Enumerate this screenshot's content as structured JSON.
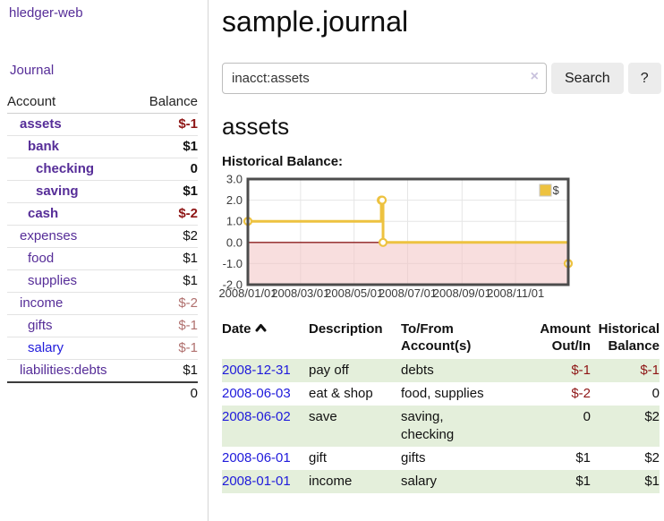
{
  "colors": {
    "purple": "#562d98",
    "blue": "#1f1adb",
    "darkred": "#8e1515",
    "mutedred": "#b0706e",
    "rowgreen": "#e4efdb"
  },
  "sidebar": {
    "brand": "hledger-web",
    "nav_journal": "Journal",
    "accounts": {
      "col_account": "Account",
      "col_balance": "Balance",
      "rows": [
        {
          "account": "assets",
          "balance": "$-1",
          "level": 1,
          "bold": true,
          "link": "purple",
          "bal": "neg"
        },
        {
          "account": "bank",
          "balance": "$1",
          "level": 2,
          "bold": true,
          "link": "purple",
          "bal": ""
        },
        {
          "account": "checking",
          "balance": "0",
          "level": 3,
          "bold": true,
          "link": "purple",
          "bal": ""
        },
        {
          "account": "saving",
          "balance": "$1",
          "level": 3,
          "bold": true,
          "link": "purple",
          "bal": ""
        },
        {
          "account": "cash",
          "balance": "$-2",
          "level": 2,
          "bold": true,
          "link": "purple",
          "bal": "neg"
        },
        {
          "account": "expenses",
          "balance": "$2",
          "level": 1,
          "bold": false,
          "link": "purple",
          "bal": ""
        },
        {
          "account": "food",
          "balance": "$1",
          "level": 2,
          "bold": false,
          "link": "purple",
          "bal": ""
        },
        {
          "account": "supplies",
          "balance": "$1",
          "level": 2,
          "bold": false,
          "link": "purple",
          "bal": ""
        },
        {
          "account": "income",
          "balance": "$-2",
          "level": 1,
          "bold": false,
          "link": "purple",
          "bal": "neg-muted"
        },
        {
          "account": "gifts",
          "balance": "$-1",
          "level": 2,
          "bold": false,
          "link": "purple",
          "bal": "neg-muted"
        },
        {
          "account": "salary",
          "balance": "$-1",
          "level": 2,
          "bold": false,
          "link": "blue",
          "bal": "neg-muted"
        },
        {
          "account": "liabilities:debts",
          "balance": "$1",
          "level": 1,
          "bold": false,
          "link": "purple",
          "bal": ""
        }
      ],
      "total": "0"
    }
  },
  "main": {
    "title": "sample.journal",
    "search": {
      "value": "inacct:assets",
      "clear_icon": "×",
      "button_label": "Search",
      "help_label": "?"
    },
    "account_heading": "assets"
  },
  "chart_data": {
    "type": "line",
    "step": true,
    "title": "Historical Balance:",
    "x_range": [
      "2008-01-01",
      "2008-12-31"
    ],
    "ylim": [
      -2,
      3
    ],
    "yticks": [
      "3.0",
      "2.0",
      "1.0",
      "0.0",
      "-1.0",
      "-2.0"
    ],
    "xticks": [
      "2008/01/01",
      "2008/03/01",
      "2008/05/01",
      "2008/07/01",
      "2008/09/01",
      "2008/11/01"
    ],
    "series": [
      {
        "name": "$",
        "color": "#edc240",
        "marker_fill": "#ffffff",
        "points": [
          {
            "x": "2008-01-01",
            "y": 1
          },
          {
            "x": "2008-06-01",
            "y": 2
          },
          {
            "x": "2008-06-02",
            "y": 2
          },
          {
            "x": "2008-06-03",
            "y": 0
          },
          {
            "x": "2008-12-31",
            "y": -1
          }
        ]
      }
    ],
    "legend_position": "top-right",
    "grid_on": true,
    "grid_color": "#e6e6e6",
    "border_color": "#4c4c4c",
    "negative_region_color": "#f2c2c2",
    "zero_line_color": "#8b1e1e"
  },
  "register_table": {
    "sort_icon": "caret-up",
    "headers": [
      "Date",
      "Description",
      "To/From Account(s)",
      "Amount Out/In",
      "Historical Balance"
    ],
    "rows": [
      {
        "date": "2008-12-31",
        "description": "pay off",
        "accounts": "debts",
        "amount": "$-1",
        "amount_neg": true,
        "balance": "$-1",
        "balance_neg": true
      },
      {
        "date": "2008-06-03",
        "description": "eat & shop",
        "accounts": "food, supplies",
        "amount": "$-2",
        "amount_neg": true,
        "balance": "0",
        "balance_neg": false
      },
      {
        "date": "2008-06-02",
        "description": "save",
        "accounts": "saving, checking",
        "amount": "0",
        "amount_neg": false,
        "balance": "$2",
        "balance_neg": false
      },
      {
        "date": "2008-06-01",
        "description": "gift",
        "accounts": "gifts",
        "amount": "$1",
        "amount_neg": false,
        "balance": "$2",
        "balance_neg": false
      },
      {
        "date": "2008-01-01",
        "description": "income",
        "accounts": "salary",
        "amount": "$1",
        "amount_neg": false,
        "balance": "$1",
        "balance_neg": false
      }
    ]
  }
}
